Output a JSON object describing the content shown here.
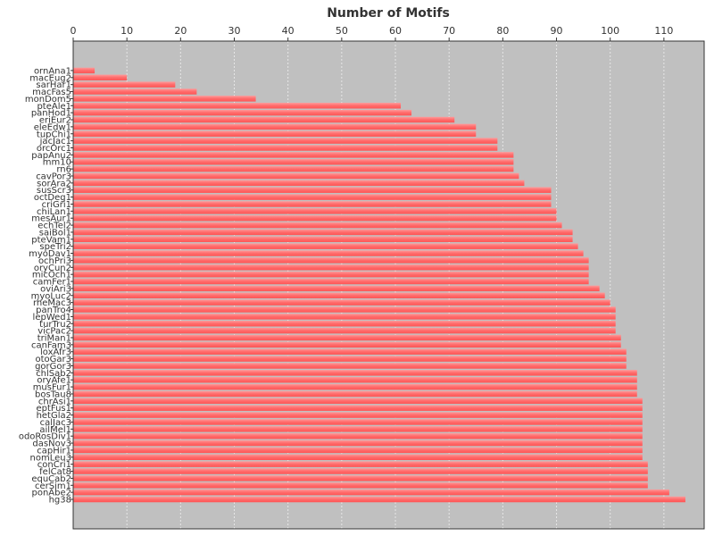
{
  "chart_data": {
    "type": "bar",
    "orientation": "horizontal",
    "title": "Number of Motifs",
    "xlabel": "",
    "ylabel": "",
    "xlim": [
      0,
      117.5
    ],
    "x_ticks": [
      0,
      10,
      20,
      30,
      40,
      50,
      60,
      70,
      80,
      90,
      100,
      110
    ],
    "x_axis_position": "top",
    "grid": true,
    "legend": "none",
    "colors": {
      "plot_background": "#c0c0c0",
      "bar_fill": "#ff6b6b",
      "bar_highlight": "#ff9a9a",
      "grid": "#e6e6e6",
      "axis": "#333333"
    },
    "categories": [
      "ornAna1",
      "macEug2",
      "sarHar1",
      "macFas5",
      "monDom5",
      "pteAle1",
      "panHod1",
      "eriEur2",
      "eleEdw1",
      "tupChi1",
      "jacJac1",
      "orcOrc1",
      "papAnu2",
      "mm10",
      "rn6",
      "cavPor3",
      "sorAra2",
      "susScr3",
      "octDeg1",
      "criGri1",
      "chiLan1",
      "mesAur1",
      "echTel2",
      "saiBol1",
      "pteVam1",
      "speTri2",
      "myoDav1",
      "ochPri3",
      "oryCun2",
      "micOch1",
      "camFer1",
      "oviAri3",
      "myoLuc2",
      "rheMac3",
      "panTro4",
      "lepWed1",
      "turTru2",
      "vicPac2",
      "triMan1",
      "canFam3",
      "loxAfr3",
      "otoGar3",
      "gorGor3",
      "chlSab2",
      "oryAfe1",
      "musFur1",
      "bosTau8",
      "chrAsi1",
      "eptFus1",
      "hetGla2",
      "calJac3",
      "ailMel1",
      "odoRosDiv1",
      "dasNov3",
      "capHir1",
      "nomLeu3",
      "conCri1",
      "felCat8",
      "equCab2",
      "cerSim1",
      "ponAbe2",
      "hg38"
    ],
    "values": [
      4,
      10,
      19,
      23,
      34,
      61,
      63,
      71,
      75,
      75,
      79,
      79,
      82,
      82,
      82,
      83,
      84,
      89,
      89,
      89,
      90,
      90,
      91,
      93,
      93,
      94,
      95,
      96,
      96,
      96,
      96,
      98,
      99,
      100,
      101,
      101,
      101,
      101,
      102,
      102,
      103,
      103,
      103,
      105,
      105,
      105,
      105,
      106,
      106,
      106,
      106,
      106,
      106,
      106,
      106,
      106,
      107,
      107,
      107,
      107,
      111,
      114
    ]
  }
}
